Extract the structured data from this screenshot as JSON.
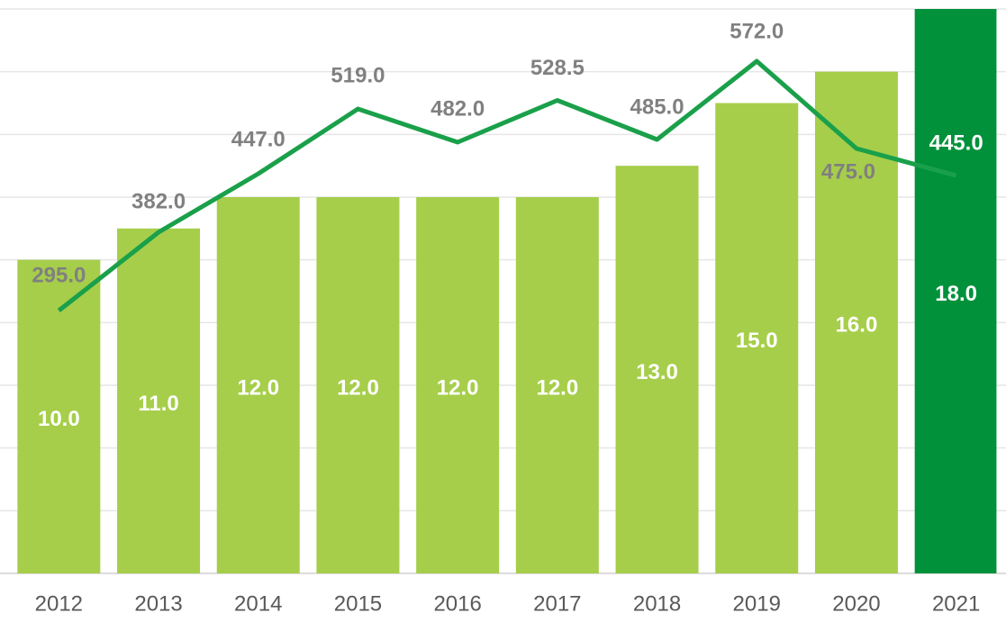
{
  "chart_data": {
    "type": "bar_line",
    "categories": [
      "2012",
      "2013",
      "2014",
      "2015",
      "2016",
      "2017",
      "2018",
      "2019",
      "2020",
      "2021"
    ],
    "series": [
      {
        "name": null,
        "type": "bar",
        "colors": [
          "#a6ce4a",
          "#a6ce4a",
          "#a6ce4a",
          "#a6ce4a",
          "#a6ce4a",
          "#a6ce4a",
          "#a6ce4a",
          "#a6ce4a",
          "#a6ce4a",
          "#00913a"
        ],
        "values": [
          10,
          11,
          12,
          12,
          12,
          12,
          13,
          15,
          16,
          18
        ],
        "value_labels": [
          "10.0",
          "11.0",
          "12.0",
          "12.0",
          "12.0",
          "12.0",
          "13.0",
          "15.0",
          "16.0",
          "18.0"
        ]
      },
      {
        "name": null,
        "type": "line",
        "axis": "y2",
        "color": "#1aa04a",
        "values": [
          295,
          382,
          447,
          519,
          482,
          528.5,
          485,
          572,
          475,
          445
        ],
        "value_labels": [
          "295.0",
          "382.0",
          "447.0",
          "519.0",
          "482.0",
          "528.5",
          "485.0",
          "572.0",
          "475.0",
          "445.0"
        ]
      }
    ],
    "ylim": [
      0,
      18
    ],
    "yticks": [
      0,
      2,
      4,
      6,
      8,
      10,
      12,
      14,
      16,
      18
    ],
    "y2lim": [
      3,
      630
    ],
    "grid": true
  }
}
